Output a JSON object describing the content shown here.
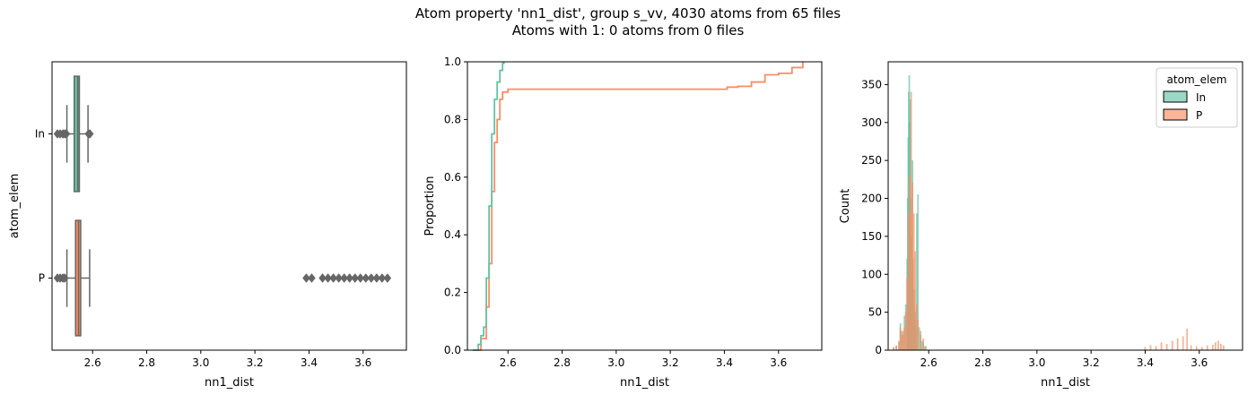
{
  "figure": {
    "title_line1": "Atom property 'nn1_dist', group s_vv, 4030 atoms from 65 files",
    "title_line2": "Atoms with 1: 0 atoms from 0 files"
  },
  "colors": {
    "In": "#66c2a5",
    "P": "#fc8d62",
    "box_edge": "#666666"
  },
  "chart_data": [
    {
      "type": "box",
      "orientation": "horizontal",
      "xlabel": "nn1_dist",
      "ylabel": "atom_elem",
      "xlim": [
        2.45,
        3.76
      ],
      "xticks": [
        2.6,
        2.8,
        3.0,
        3.2,
        3.4,
        3.6
      ],
      "categories": [
        "In",
        "P"
      ],
      "boxes": [
        {
          "name": "In",
          "whisker_low": 2.505,
          "q1": 2.532,
          "median": 2.545,
          "q3": 2.551,
          "whisker_high": 2.583,
          "outliers_low": [
            2.47,
            2.48,
            2.49,
            2.497,
            2.503
          ],
          "outliers_high": [
            2.585,
            2.59
          ]
        },
        {
          "name": "P",
          "whisker_low": 2.505,
          "q1": 2.537,
          "median": 2.548,
          "q3": 2.556,
          "whisker_high": 2.589,
          "outliers_low": [
            2.47,
            2.48,
            2.49,
            2.497
          ],
          "outliers_high": [
            3.39,
            3.41,
            3.45,
            3.47,
            3.49,
            3.51,
            3.53,
            3.55,
            3.57,
            3.59,
            3.61,
            3.63,
            3.65,
            3.67,
            3.69
          ]
        }
      ]
    },
    {
      "type": "line",
      "subtype": "ecdf",
      "xlabel": "nn1_dist",
      "ylabel": "Proportion",
      "xlim": [
        2.45,
        3.76
      ],
      "ylim": [
        0,
        1
      ],
      "xticks": [
        2.6,
        2.8,
        3.0,
        3.2,
        3.4,
        3.6
      ],
      "yticks": [
        0.0,
        0.2,
        0.4,
        0.6,
        0.8,
        1.0
      ],
      "series": [
        {
          "name": "In",
          "x": [
            2.47,
            2.49,
            2.5,
            2.51,
            2.52,
            2.53,
            2.54,
            2.55,
            2.56,
            2.57,
            2.58,
            2.585
          ],
          "y": [
            0.0,
            0.02,
            0.05,
            0.08,
            0.25,
            0.5,
            0.75,
            0.87,
            0.93,
            0.97,
            0.995,
            1.0
          ]
        },
        {
          "name": "P",
          "x": [
            2.47,
            2.5,
            2.52,
            2.53,
            2.54,
            2.55,
            2.56,
            2.57,
            2.58,
            2.6,
            3.38,
            3.41,
            3.45,
            3.5,
            3.55,
            3.6,
            3.65,
            3.69
          ],
          "y": [
            0.0,
            0.04,
            0.15,
            0.3,
            0.55,
            0.72,
            0.8,
            0.87,
            0.895,
            0.905,
            0.905,
            0.912,
            0.915,
            0.93,
            0.955,
            0.96,
            0.98,
            1.0
          ]
        }
      ]
    },
    {
      "type": "bar",
      "subtype": "histogram",
      "xlabel": "nn1_dist",
      "ylabel": "Count",
      "xlim": [
        2.45,
        3.76
      ],
      "ylim": [
        0,
        380
      ],
      "xticks": [
        2.6,
        2.8,
        3.0,
        3.2,
        3.4,
        3.6
      ],
      "yticks": [
        0,
        50,
        100,
        150,
        200,
        250,
        300,
        350
      ],
      "legend": {
        "title": "atom_elem",
        "entries": [
          "In",
          "P"
        ],
        "placement": "top-right"
      },
      "bin_width": 0.002,
      "series": [
        {
          "name": "In",
          "x": [
            2.47,
            2.48,
            2.49,
            2.495,
            2.5,
            2.505,
            2.51,
            2.515,
            2.52,
            2.522,
            2.524,
            2.526,
            2.528,
            2.53,
            2.532,
            2.534,
            2.536,
            2.538,
            2.54,
            2.542,
            2.544,
            2.546,
            2.548,
            2.55,
            2.552,
            2.556,
            2.56,
            2.565,
            2.57,
            2.575,
            2.58,
            2.585
          ],
          "values": [
            3,
            5,
            10,
            35,
            20,
            25,
            45,
            60,
            120,
            200,
            280,
            340,
            362,
            300,
            330,
            200,
            150,
            90,
            250,
            120,
            60,
            80,
            40,
            50,
            30,
            180,
            205,
            30,
            20,
            12,
            10,
            5
          ]
        },
        {
          "name": "P",
          "x": [
            2.47,
            2.48,
            2.49,
            2.495,
            2.5,
            2.505,
            2.51,
            2.515,
            2.52,
            2.525,
            2.53,
            2.535,
            2.54,
            2.545,
            2.55,
            2.555,
            2.56,
            2.57,
            2.58,
            2.59,
            3.4,
            3.42,
            3.44,
            3.46,
            3.48,
            3.5,
            3.52,
            3.54,
            3.555,
            3.57,
            3.59,
            3.61,
            3.63,
            3.65,
            3.66,
            3.67,
            3.68,
            3.69
          ],
          "values": [
            4,
            6,
            12,
            30,
            25,
            20,
            30,
            50,
            95,
            180,
            230,
            340,
            220,
            180,
            130,
            60,
            40,
            25,
            15,
            5,
            4,
            6,
            5,
            10,
            8,
            12,
            15,
            18,
            28,
            6,
            5,
            4,
            6,
            7,
            10,
            12,
            8,
            6
          ]
        }
      ]
    }
  ]
}
